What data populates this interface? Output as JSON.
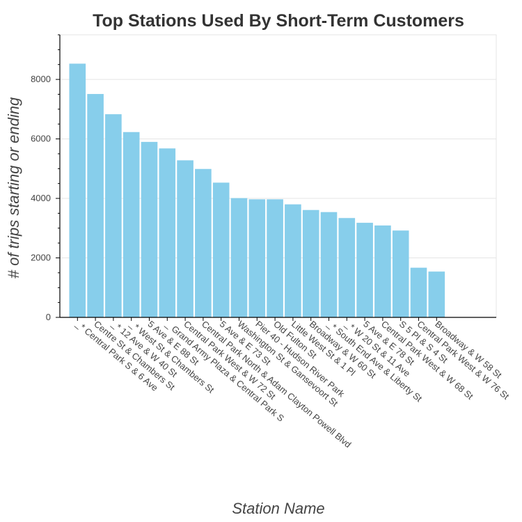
{
  "chart_data": {
    "type": "bar",
    "title": "Top Stations Used By Short-Term Customers",
    "xlabel": "Station Name",
    "ylabel": "# of trips starting or ending",
    "ylim": [
      0,
      9500
    ],
    "yticks": [
      0,
      2000,
      4000,
      6000,
      8000
    ],
    "grid": true,
    "bar_color": "#87CEEB",
    "categories": [
      "_* Central Park S & 6 Ave",
      "Centre St & Chambers St",
      "_* 12 Ave & W 40 St",
      "_* West St & Chambers St",
      "5 Ave & E 88 St",
      "_ Grand Army Plaza & Central Park S",
      "Central Park West & W 72 St",
      "Central Park North & Adam Clayton Powell Blvd",
      "5 Ave & E 73 St",
      "Washington St & Gansevoort St",
      "Pier 40 - Hudson River Park",
      "Old Fulton St",
      "Little West St & 1 Pl",
      "Broadway & W 60 St",
      "_* South End Ave & Liberty St",
      "_* W 20 St & 11 Ave",
      "5 Ave & E 78 St",
      "Central Park West & W 68 St",
      "S 5 Pl & S 4 St",
      "Central Park West & W 76 St",
      "Broadway & W 58 St"
    ],
    "values": [
      8530,
      7510,
      6830,
      6230,
      5900,
      5680,
      5280,
      4990,
      4530,
      4010,
      3970,
      3970,
      3800,
      3610,
      3540,
      3340,
      3180,
      3090,
      2920,
      1670,
      1540
    ]
  }
}
